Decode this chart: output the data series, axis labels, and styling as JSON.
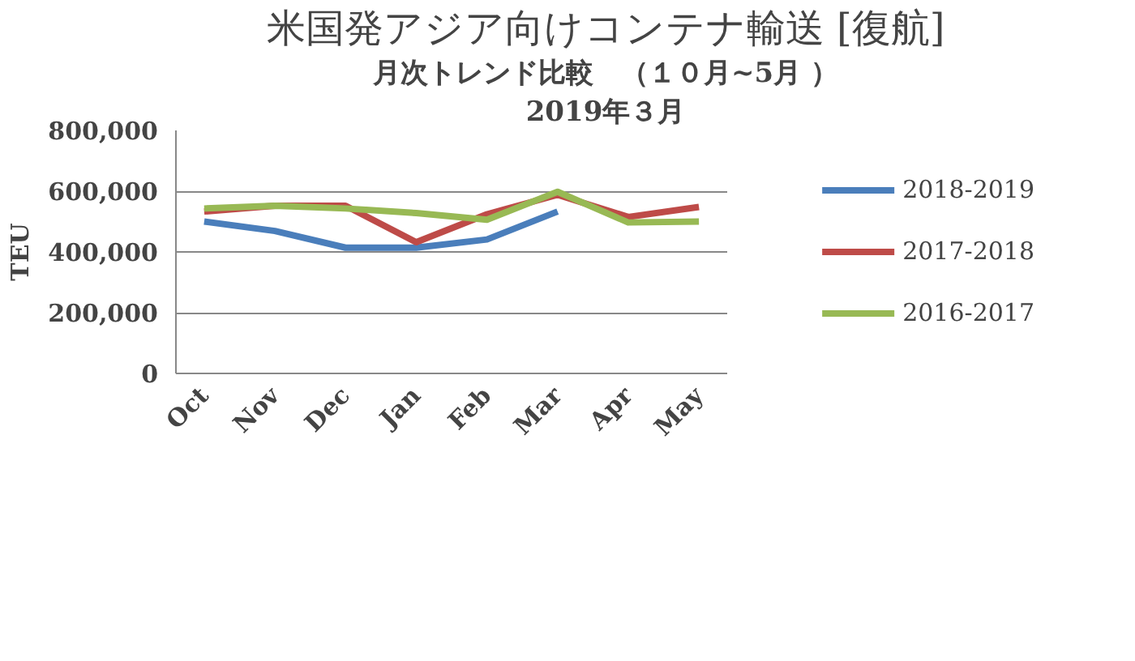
{
  "chart_data": {
    "type": "line",
    "title": "米国発アジア向けコンテナ輸送 [復航]",
    "subtitle": "月次トレンド比較　（１０月~5月 ）",
    "annotations": [
      "2019年３月"
    ],
    "ylabel": "TEU",
    "categories": [
      "Oct",
      "Nov",
      "Dec",
      "Jan",
      "Feb",
      "Mar",
      "Apr",
      "May"
    ],
    "series": [
      {
        "name": "2018-2019",
        "color": "#4a7ebb",
        "values": [
          500000,
          469000,
          414000,
          414000,
          441000,
          533000,
          null,
          null
        ]
      },
      {
        "name": "2017-2018",
        "color": "#be4b48",
        "values": [
          533000,
          552000,
          552000,
          432000,
          524000,
          588000,
          515000,
          548000
        ]
      },
      {
        "name": "2016-2017",
        "color": "#98b954",
        "values": [
          543000,
          552000,
          543000,
          528000,
          506000,
          598000,
          497000,
          500000
        ]
      }
    ],
    "ylim": [
      0,
      800000
    ],
    "yticks": [
      {
        "value": 0,
        "label": "0"
      },
      {
        "value": 200000,
        "label": "200,000"
      },
      {
        "value": 400000,
        "label": "400,000"
      },
      {
        "value": 600000,
        "label": "600,000"
      },
      {
        "value": 800000,
        "label": "800,000"
      }
    ],
    "grid": "y",
    "legend": "right",
    "marker": "none",
    "line_style": "solid"
  }
}
